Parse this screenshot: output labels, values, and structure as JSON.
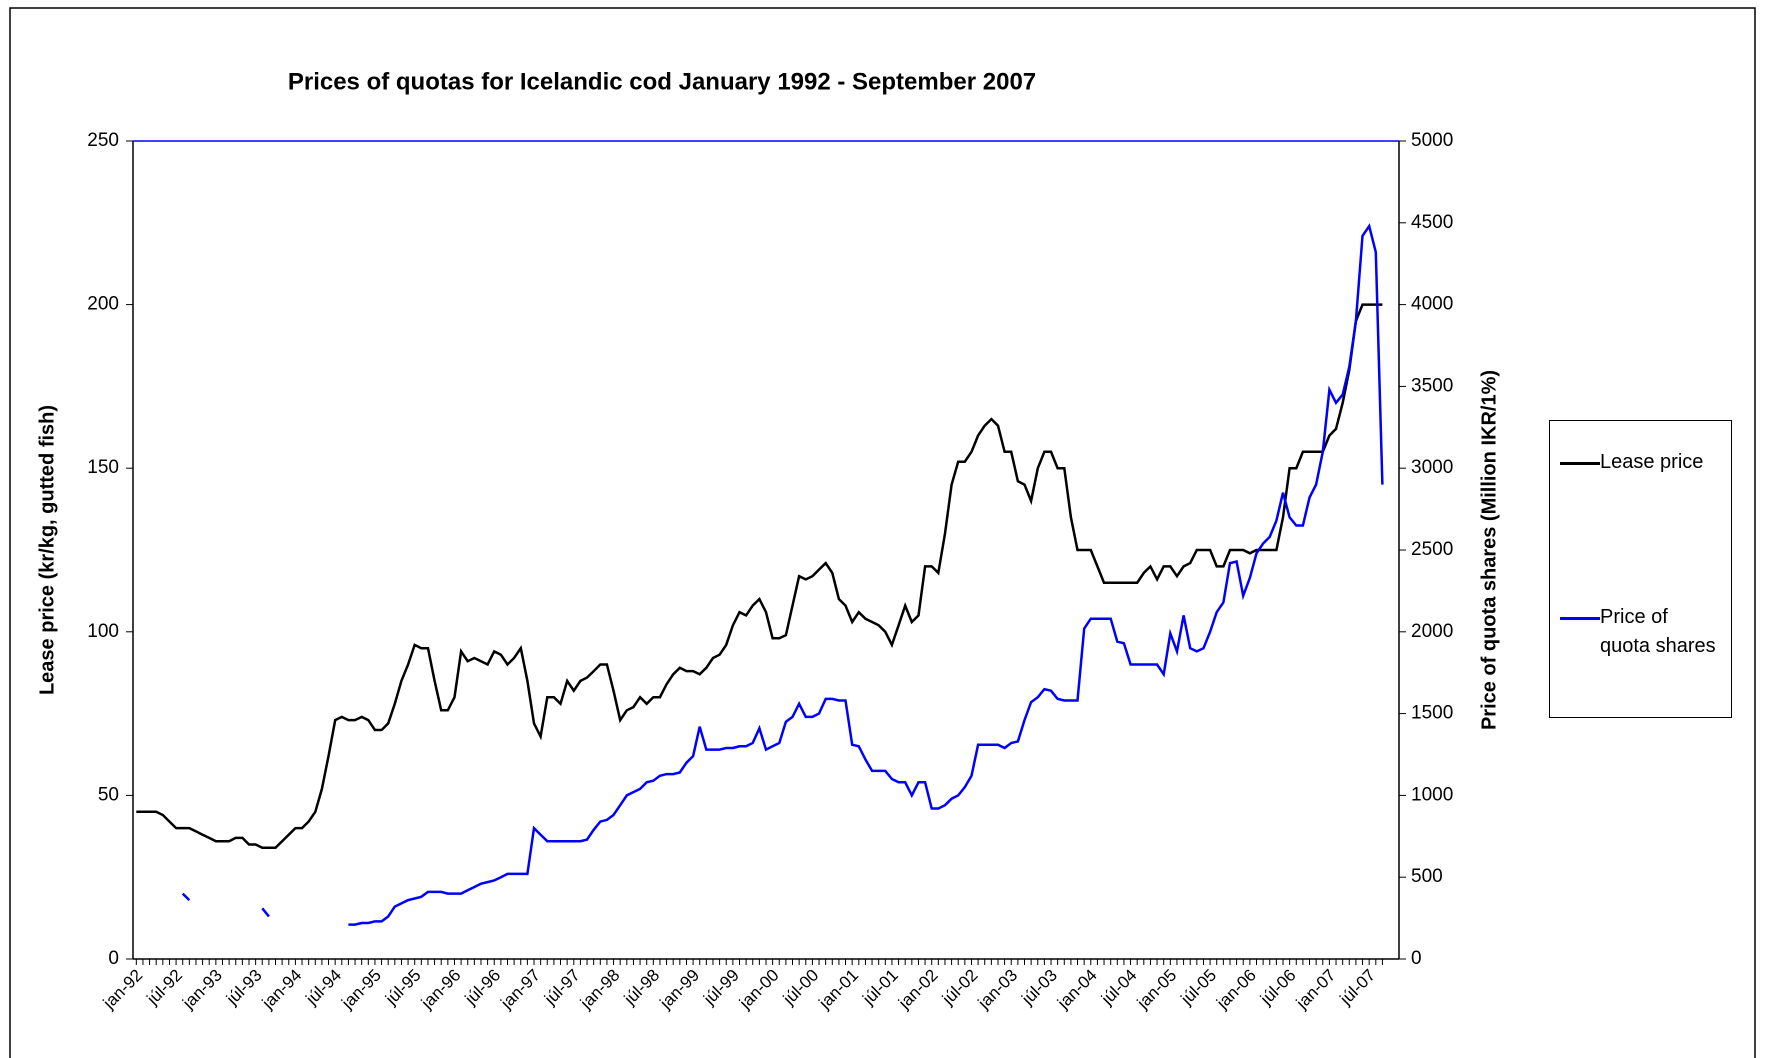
{
  "chart_data": {
    "type": "line",
    "title": "Prices of quotas for Icelandic cod January 1992 - September 2007",
    "y_label": "Lease price (kr/kg, gutted fish)",
    "y2_label": "Price of quota shares (Million IKR/1%)",
    "categories": [
      "jan-92",
      null,
      null,
      null,
      null,
      null,
      "júl-92",
      null,
      null,
      null,
      null,
      null,
      "jan-93",
      null,
      null,
      null,
      null,
      null,
      "júl-93",
      null,
      null,
      null,
      null,
      null,
      "jan-94",
      null,
      null,
      null,
      null,
      null,
      "júl-94",
      null,
      null,
      null,
      null,
      null,
      "jan-95",
      null,
      null,
      null,
      null,
      null,
      "júl-95",
      null,
      null,
      null,
      null,
      null,
      "jan-96",
      null,
      null,
      null,
      null,
      null,
      "júl-96",
      null,
      null,
      null,
      null,
      null,
      "jan-97",
      null,
      null,
      null,
      null,
      null,
      "júl-97",
      null,
      null,
      null,
      null,
      null,
      "jan-98",
      null,
      null,
      null,
      null,
      null,
      "júl-98",
      null,
      null,
      null,
      null,
      null,
      "jan-99",
      null,
      null,
      null,
      null,
      null,
      "júl-99",
      null,
      null,
      null,
      null,
      null,
      "jan-00",
      null,
      null,
      null,
      null,
      null,
      "júl-00",
      null,
      null,
      null,
      null,
      null,
      "jan-01",
      null,
      null,
      null,
      null,
      null,
      "júl-01",
      null,
      null,
      null,
      null,
      null,
      "jan-02",
      null,
      null,
      null,
      null,
      null,
      "júl-02",
      null,
      null,
      null,
      null,
      null,
      "jan-03",
      null,
      null,
      null,
      null,
      null,
      "júl-03",
      null,
      null,
      null,
      null,
      null,
      "jan-04",
      null,
      null,
      null,
      null,
      null,
      "júl-04",
      null,
      null,
      null,
      null,
      null,
      "jan-05",
      null,
      null,
      null,
      null,
      null,
      "júl-05",
      null,
      null,
      null,
      null,
      null,
      "jan-06",
      null,
      null,
      null,
      null,
      null,
      "júl-06",
      null,
      null,
      null,
      null,
      null,
      "jan-07",
      null,
      null,
      null,
      null,
      null,
      "júl-07",
      null,
      null
    ],
    "series": [
      {
        "name": "Lease price",
        "color": "#000000",
        "values": [
          45,
          45,
          45,
          45,
          44,
          42,
          40,
          40,
          40,
          39,
          38,
          37,
          36,
          36,
          36,
          37,
          37,
          35,
          35,
          34,
          34,
          34,
          36,
          38,
          40,
          40,
          42,
          45,
          52,
          62,
          73,
          74,
          73,
          73,
          74,
          73,
          70,
          70,
          72,
          78,
          85,
          90,
          96,
          95,
          95,
          85,
          76,
          76,
          80,
          94,
          91,
          92,
          91,
          90,
          94,
          93,
          90,
          92,
          95,
          85,
          72,
          68,
          80,
          80,
          78,
          85,
          82,
          85,
          86,
          88,
          90,
          90,
          82,
          73,
          76,
          77,
          80,
          78,
          80,
          80,
          84,
          87,
          89,
          88,
          88,
          87,
          89,
          92,
          93,
          96,
          102,
          106,
          105,
          108,
          110,
          106,
          98,
          98,
          99,
          108,
          117,
          116,
          117,
          119,
          121,
          118,
          110,
          108,
          103,
          106,
          104,
          103,
          102,
          100,
          96,
          102,
          108,
          103,
          105,
          120,
          120,
          118,
          130,
          145,
          152,
          152,
          155,
          160,
          163,
          165,
          163,
          155,
          155,
          146,
          145,
          140,
          150,
          155,
          155,
          150,
          150,
          135,
          125,
          125,
          125,
          120,
          115,
          115,
          115,
          115,
          115,
          115,
          118,
          120,
          116,
          120,
          120,
          117,
          120,
          121,
          125,
          125,
          125,
          120,
          120,
          125,
          125,
          125,
          124,
          125,
          125,
          125,
          125,
          135,
          150,
          150,
          155,
          155,
          155,
          155,
          160,
          162,
          170,
          180,
          195,
          200,
          200,
          200,
          200
        ]
      },
      {
        "name": "Price of quota shares",
        "color": "#0000ff",
        "axis": "y2",
        "values": [
          null,
          null,
          null,
          null,
          null,
          null,
          null,
          400,
          360,
          null,
          null,
          null,
          null,
          null,
          null,
          null,
          null,
          null,
          null,
          310,
          260,
          null,
          null,
          null,
          null,
          null,
          null,
          null,
          null,
          null,
          null,
          null,
          210,
          210,
          220,
          220,
          230,
          230,
          260,
          320,
          340,
          360,
          370,
          380,
          410,
          410,
          410,
          400,
          400,
          400,
          420,
          440,
          460,
          470,
          480,
          500,
          520,
          520,
          520,
          520,
          800,
          760,
          720,
          720,
          720,
          720,
          720,
          720,
          730,
          790,
          840,
          850,
          880,
          940,
          1000,
          1020,
          1040,
          1080,
          1090,
          1120,
          1130,
          1130,
          1140,
          1200,
          1240,
          1420,
          1280,
          1280,
          1280,
          1290,
          1290,
          1300,
          1300,
          1320,
          1410,
          1280,
          1300,
          1320,
          1450,
          1480,
          1560,
          1480,
          1480,
          1500,
          1590,
          1590,
          1580,
          1580,
          1310,
          1300,
          1220,
          1150,
          1150,
          1150,
          1100,
          1080,
          1080,
          1000,
          1080,
          1080,
          920,
          920,
          940,
          980,
          1000,
          1050,
          1120,
          1310,
          1310,
          1310,
          1310,
          1290,
          1320,
          1330,
          1460,
          1570,
          1600,
          1650,
          1640,
          1590,
          1580,
          1580,
          1580,
          2020,
          2080,
          2080,
          2080,
          2080,
          1940,
          1930,
          1800,
          1800,
          1800,
          1800,
          1800,
          1740,
          1990,
          1880,
          2100,
          1900,
          1880,
          1900,
          2000,
          2120,
          2180,
          2420,
          2430,
          2220,
          2330,
          2480,
          2540,
          2580,
          2680,
          2850,
          2700,
          2650,
          2650,
          2820,
          2900,
          3100,
          3480,
          3400,
          3450,
          3620,
          3900,
          4420,
          4480,
          4320,
          2900
        ]
      }
    ],
    "ylim": [
      0,
      250
    ],
    "yticks": [
      0,
      50,
      100,
      150,
      200,
      250
    ],
    "y2lim": [
      0,
      5000
    ],
    "y2ticks": [
      0,
      500,
      1000,
      1500,
      2000,
      2500,
      3000,
      3500,
      4000,
      4500,
      5000
    ],
    "legend": "right"
  }
}
